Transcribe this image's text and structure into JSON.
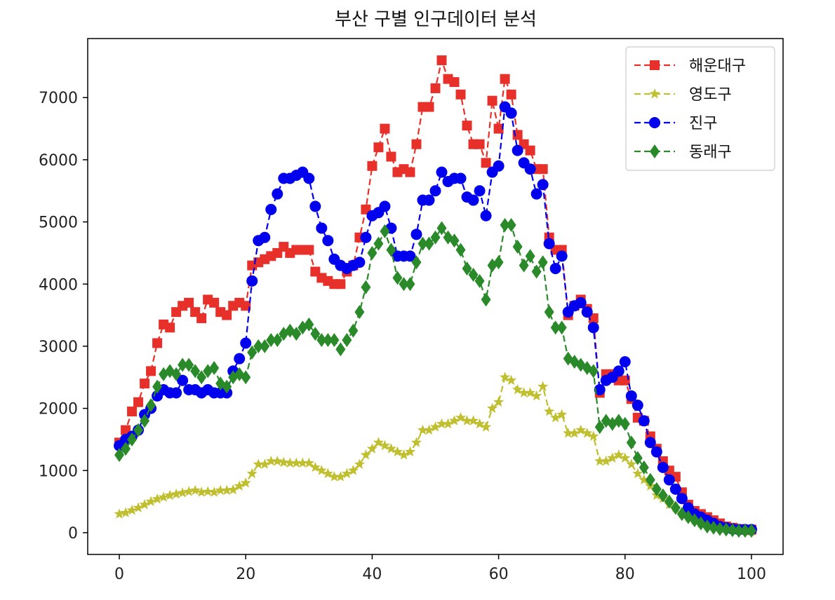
{
  "chart_data": {
    "type": "line",
    "title": "부산 구별 인구데이터 분석",
    "xlabel": "",
    "ylabel": "",
    "xlim": [
      -5,
      105
    ],
    "ylim": [
      -350,
      7950
    ],
    "xticks": [
      0,
      20,
      40,
      60,
      80,
      100
    ],
    "yticks": [
      0,
      1000,
      2000,
      3000,
      4000,
      5000,
      6000,
      7000
    ],
    "grid": false,
    "legend_position": "top-right",
    "x": [
      0,
      1,
      2,
      3,
      4,
      5,
      6,
      7,
      8,
      9,
      10,
      11,
      12,
      13,
      14,
      15,
      16,
      17,
      18,
      19,
      20,
      21,
      22,
      23,
      24,
      25,
      26,
      27,
      28,
      29,
      30,
      31,
      32,
      33,
      34,
      35,
      36,
      37,
      38,
      39,
      40,
      41,
      42,
      43,
      44,
      45,
      46,
      47,
      48,
      49,
      50,
      51,
      52,
      53,
      54,
      55,
      56,
      57,
      58,
      59,
      60,
      61,
      62,
      63,
      64,
      65,
      66,
      67,
      68,
      69,
      70,
      71,
      72,
      73,
      74,
      75,
      76,
      77,
      78,
      79,
      80,
      81,
      82,
      83,
      84,
      85,
      86,
      87,
      88,
      89,
      90,
      91,
      92,
      93,
      94,
      95,
      96,
      97,
      98,
      99,
      100
    ],
    "series": [
      {
        "name": "해운대구",
        "color": "#e8302a",
        "marker": "square",
        "values": [
          1450,
          1650,
          1950,
          2100,
          2400,
          2600,
          3050,
          3350,
          3300,
          3550,
          3650,
          3700,
          3550,
          3450,
          3750,
          3700,
          3550,
          3500,
          3650,
          3700,
          3650,
          4300,
          4350,
          4400,
          4450,
          4500,
          4600,
          4500,
          4550,
          4550,
          4550,
          4200,
          4100,
          4050,
          4000,
          4000,
          4200,
          4300,
          4750,
          5200,
          5900,
          6200,
          6500,
          6050,
          5800,
          5850,
          5800,
          6250,
          6850,
          6850,
          7150,
          7600,
          7300,
          7250,
          7050,
          6550,
          6250,
          6250,
          5950,
          6950,
          6500,
          7300,
          7050,
          6400,
          6250,
          6150,
          5850,
          5850,
          4750,
          4550,
          4550,
          3500,
          3650,
          3750,
          3600,
          3450,
          2250,
          2550,
          2550,
          2450,
          2450,
          2150,
          1850,
          1800,
          1550,
          1350,
          1150,
          1000,
          900,
          650,
          450,
          350,
          300,
          250,
          200,
          150,
          100,
          80,
          60,
          50,
          50
        ]
      },
      {
        "name": "영도구",
        "color": "#bfbf30",
        "marker": "star",
        "values": [
          300,
          320,
          360,
          400,
          450,
          500,
          540,
          570,
          600,
          620,
          640,
          660,
          680,
          650,
          660,
          650,
          680,
          680,
          690,
          750,
          800,
          950,
          1100,
          1100,
          1150,
          1150,
          1130,
          1120,
          1120,
          1120,
          1120,
          1050,
          1000,
          950,
          900,
          900,
          950,
          1000,
          1100,
          1250,
          1350,
          1450,
          1400,
          1350,
          1300,
          1250,
          1300,
          1450,
          1650,
          1650,
          1700,
          1750,
          1750,
          1800,
          1850,
          1800,
          1800,
          1750,
          1700,
          2000,
          2100,
          2500,
          2450,
          2300,
          2250,
          2250,
          2200,
          2350,
          1950,
          1850,
          1900,
          1600,
          1600,
          1650,
          1600,
          1550,
          1150,
          1150,
          1200,
          1250,
          1200,
          1100,
          950,
          850,
          750,
          600,
          550,
          450,
          400,
          300,
          250,
          200,
          150,
          120,
          100,
          80,
          60,
          50,
          40,
          30,
          20
        ]
      },
      {
        "name": "진구",
        "color": "#0000ee",
        "marker": "circle",
        "values": [
          1400,
          1500,
          1550,
          1650,
          1900,
          2000,
          2200,
          2300,
          2250,
          2250,
          2450,
          2300,
          2300,
          2250,
          2300,
          2250,
          2250,
          2250,
          2600,
          2800,
          3050,
          4050,
          4700,
          4750,
          5200,
          5450,
          5700,
          5700,
          5750,
          5800,
          5700,
          5250,
          4900,
          4700,
          4400,
          4300,
          4250,
          4300,
          4350,
          4750,
          5100,
          5150,
          5250,
          4900,
          4450,
          4450,
          4450,
          4800,
          5350,
          5350,
          5500,
          5800,
          5650,
          5700,
          5700,
          5400,
          5350,
          5500,
          5100,
          5800,
          5900,
          6850,
          6750,
          6150,
          5950,
          5850,
          5450,
          5600,
          4650,
          4250,
          4450,
          3550,
          3650,
          3700,
          3550,
          3300,
          2300,
          2450,
          2500,
          2600,
          2750,
          2200,
          2050,
          1800,
          1450,
          1300,
          1050,
          850,
          700,
          550,
          400,
          300,
          250,
          200,
          150,
          100,
          80,
          60,
          50,
          50,
          50
        ]
      },
      {
        "name": "동래구",
        "color": "#2a8a2a",
        "marker": "diamond",
        "values": [
          1250,
          1350,
          1500,
          1650,
          1800,
          2050,
          2350,
          2550,
          2600,
          2550,
          2700,
          2700,
          2600,
          2500,
          2600,
          2650,
          2400,
          2350,
          2500,
          2550,
          2500,
          2900,
          3000,
          3000,
          3100,
          3100,
          3200,
          3250,
          3200,
          3300,
          3350,
          3200,
          3100,
          3100,
          3100,
          2950,
          3100,
          3250,
          3550,
          3950,
          4500,
          4650,
          4850,
          4550,
          4100,
          4000,
          4000,
          4350,
          4650,
          4650,
          4750,
          4900,
          4750,
          4700,
          4550,
          4250,
          4150,
          4050,
          3750,
          4300,
          4350,
          4950,
          4950,
          4600,
          4300,
          4450,
          4200,
          4350,
          3550,
          3300,
          3300,
          2800,
          2750,
          2700,
          2650,
          2600,
          1700,
          1800,
          1750,
          1800,
          1750,
          1450,
          1200,
          1050,
          850,
          700,
          600,
          500,
          400,
          300,
          250,
          200,
          150,
          100,
          80,
          60,
          50,
          40,
          30,
          30,
          30
        ]
      }
    ]
  }
}
